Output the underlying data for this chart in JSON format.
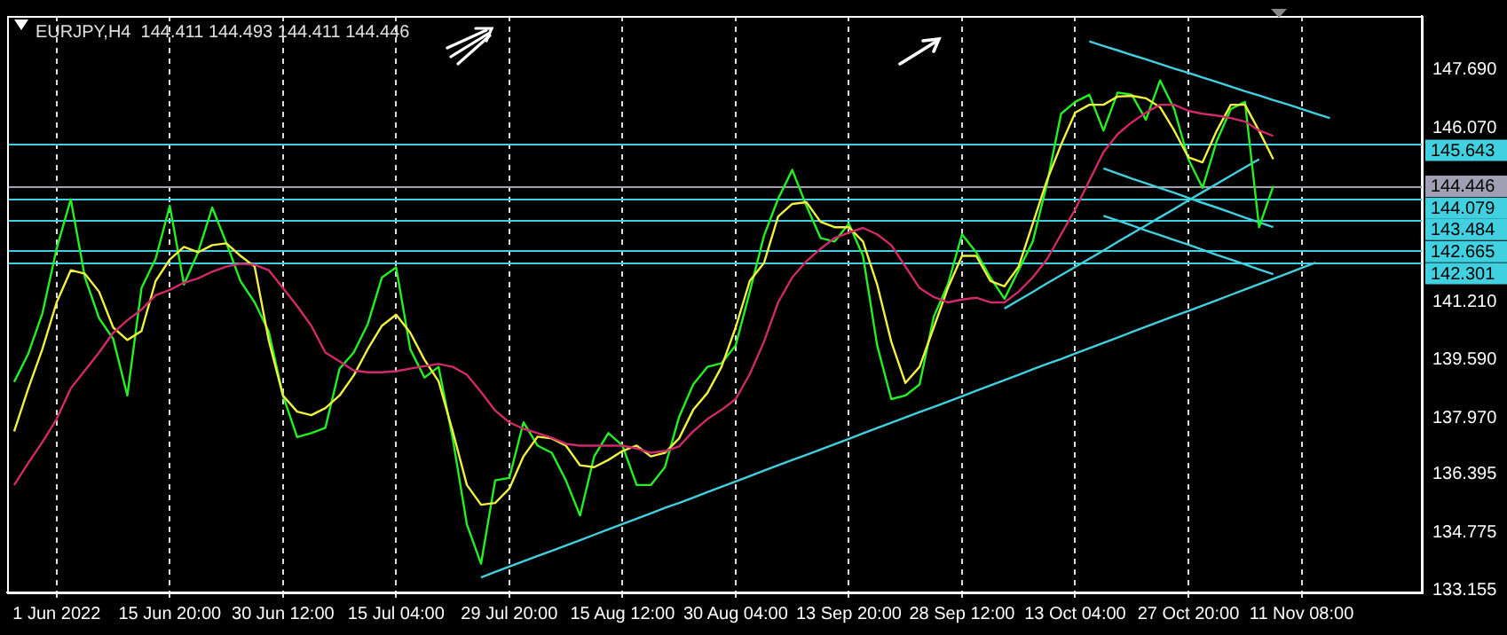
{
  "chart_data": {
    "type": "line",
    "title": "EURJPY,H4  144.411 144.493 144.411 144.446",
    "categories": [
      null,
      null,
      null,
      "1 Jun 2022",
      null,
      null,
      null,
      null,
      null,
      null,
      null,
      "15 Jun 20:00",
      null,
      null,
      null,
      null,
      null,
      null,
      null,
      "30 Jun 12:00",
      null,
      null,
      null,
      null,
      null,
      null,
      null,
      "15 Jul 04:00",
      null,
      null,
      null,
      null,
      null,
      null,
      null,
      "29 Jul 20:00",
      null,
      null,
      null,
      null,
      null,
      null,
      null,
      "15 Aug 12:00",
      null,
      null,
      null,
      null,
      null,
      null,
      null,
      "30 Aug 04:00",
      null,
      null,
      null,
      null,
      null,
      null,
      null,
      "13 Sep 20:00",
      null,
      null,
      null,
      null,
      null,
      null,
      null,
      "28 Sep 12:00",
      null,
      null,
      null,
      null,
      null,
      null,
      null,
      "13 Oct 04:00",
      null,
      null,
      null,
      null,
      null,
      null,
      null,
      "27 Oct 20:00",
      null,
      null,
      null,
      null,
      null,
      null,
      null,
      "11 Nov 08:00",
      null,
      null,
      null,
      null,
      null,
      null,
      null,
      null
    ],
    "ylim": [
      133.1,
      149.2
    ],
    "yticks": [
      133.155,
      134.775,
      136.395,
      {
        "value": 137.97,
        "label": "137.970"
      },
      {
        "value": 139.59,
        "label": "139.590"
      },
      {
        "value": 141.21,
        "label": "141.210"
      },
      {
        "value": 146.07,
        "label": "146.070"
      },
      {
        "value": 147.69,
        "label": "147.690"
      }
    ],
    "grid": "x",
    "marker": "none",
    "line_style": "solid",
    "ref_lines": [
      {
        "axis": "y",
        "value": 145.643,
        "label": "145.643",
        "color": "#40d0e0"
      },
      {
        "axis": "y",
        "value": 144.446,
        "label": "144.446",
        "color": "#a0a0b4"
      },
      {
        "axis": "y",
        "value": 144.079,
        "label": "144.079",
        "color": "#40d0e0"
      },
      {
        "axis": "y",
        "value": 143.484,
        "label": "143.484",
        "color": "#40d0e0"
      },
      {
        "axis": "y",
        "value": 142.665,
        "label": "142.665",
        "color": "#40d0e0"
      },
      {
        "axis": "y",
        "value": 142.301,
        "label": "142.301",
        "color": "#40d0e0"
      }
    ],
    "series": [
      {
        "color": "#d02a6a",
        "values": [
          136.1,
          136.72,
          137.3,
          137.94,
          138.8,
          139.3,
          139.8,
          140.35,
          140.7,
          141.0,
          141.4,
          141.55,
          141.75,
          141.87,
          142.06,
          142.2,
          142.28,
          142.25,
          142.1,
          141.6,
          141.1,
          140.55,
          139.8,
          139.55,
          139.3,
          139.25,
          139.25,
          139.28,
          139.35,
          139.42,
          139.48,
          139.4,
          139.18,
          138.7,
          138.18,
          137.85,
          137.67,
          137.55,
          137.42,
          137.25,
          137.2,
          137.2,
          137.2,
          137.2,
          137.12,
          137.0,
          137.05,
          137.18,
          137.6,
          137.94,
          138.2,
          138.5,
          139.2,
          140.1,
          141.2,
          141.9,
          142.35,
          142.7,
          143.0,
          143.15,
          143.28,
          143.1,
          142.8,
          142.2,
          141.6,
          141.35,
          141.2,
          141.28,
          141.33,
          141.2,
          141.2,
          141.5,
          141.9,
          142.4,
          143.1,
          143.8,
          144.6,
          145.4,
          145.9,
          146.23,
          146.5,
          146.72,
          146.72,
          146.55,
          146.47,
          146.42,
          146.35,
          146.25,
          146.0,
          145.85,
          null,
          null,
          null,
          null,
          null,
          null,
          null,
          null,
          null,
          null
        ]
      },
      {
        "color": "#f0f040",
        "values": [
          137.6,
          138.8,
          139.9,
          141.2,
          142.1,
          142.0,
          141.5,
          140.5,
          140.15,
          140.4,
          141.8,
          142.4,
          142.75,
          142.6,
          142.8,
          142.85,
          142.5,
          142.2,
          140.13,
          138.6,
          138.15,
          138.05,
          138.25,
          138.6,
          139.16,
          139.9,
          140.55,
          140.86,
          140.35,
          139.6,
          139.0,
          137.6,
          136.1,
          135.55,
          135.6,
          136.0,
          136.9,
          137.45,
          137.4,
          137.2,
          136.65,
          136.6,
          136.8,
          137.05,
          137.2,
          136.9,
          137.0,
          137.4,
          138.2,
          138.67,
          139.4,
          140.5,
          141.8,
          142.3,
          143.6,
          143.95,
          144.0,
          143.45,
          143.3,
          143.3,
          142.9,
          141.7,
          140.1,
          138.95,
          139.4,
          140.5,
          141.6,
          142.5,
          142.5,
          141.8,
          141.65,
          142.2,
          143.4,
          144.6,
          145.6,
          146.5,
          146.72,
          146.72,
          146.95,
          146.97,
          146.9,
          146.65,
          146.0,
          145.25,
          145.11,
          145.99,
          146.72,
          146.72,
          145.99,
          145.2,
          null,
          null,
          null,
          null,
          null,
          null,
          null,
          null,
          null,
          null
        ]
      },
      {
        "color": "#22f022",
        "values": [
          138.98,
          139.77,
          140.9,
          142.7,
          144.08,
          141.9,
          140.76,
          140.18,
          138.6,
          141.6,
          142.42,
          143.9,
          141.7,
          142.6,
          143.85,
          142.86,
          141.79,
          141.2,
          140.38,
          138.6,
          137.44,
          137.55,
          137.7,
          139.35,
          139.8,
          140.6,
          141.9,
          142.18,
          139.89,
          139.1,
          139.4,
          137.4,
          135.0,
          133.9,
          136.23,
          136.3,
          137.85,
          137.2,
          137.0,
          136.23,
          135.25,
          136.9,
          137.55,
          137.2,
          136.1,
          136.1,
          136.6,
          138.0,
          138.91,
          139.4,
          139.5,
          140.0,
          141.5,
          143.06,
          144.09,
          144.9,
          143.9,
          143.0,
          142.9,
          143.4,
          142.5,
          140.0,
          138.5,
          138.6,
          138.91,
          140.8,
          141.7,
          143.1,
          142.6,
          141.9,
          141.3,
          142.1,
          142.9,
          144.5,
          146.47,
          146.8,
          147.0,
          146.0,
          147.06,
          147.0,
          146.3,
          147.4,
          146.6,
          145.2,
          144.4,
          145.7,
          146.6,
          146.8,
          143.3,
          144.45,
          null,
          null,
          null,
          null,
          null,
          null,
          null,
          null,
          null,
          null
        ]
      },
      {
        "color": "#40d0e0",
        "values": [
          null,
          null,
          null,
          null,
          null,
          null,
          null,
          null,
          null,
          null,
          null,
          null,
          null,
          null,
          null,
          null,
          null,
          null,
          null,
          null,
          null,
          null,
          null,
          null,
          null,
          null,
          null,
          null,
          null,
          null,
          null,
          null,
          null,
          133.52,
          133.67,
          133.82,
          133.97,
          134.12,
          134.26,
          134.41,
          134.56,
          134.71,
          134.86,
          135.01,
          135.16,
          135.31,
          135.46,
          135.6,
          135.75,
          135.9,
          136.05,
          136.2,
          136.35,
          136.5,
          136.65,
          136.8,
          136.94,
          137.09,
          137.24,
          137.39,
          137.54,
          137.69,
          137.84,
          137.99,
          138.14,
          138.28,
          138.43,
          138.58,
          138.73,
          138.88,
          139.03,
          139.18,
          139.33,
          139.48,
          139.62,
          139.77,
          139.92,
          140.07,
          140.22,
          140.37,
          140.52,
          140.67,
          140.82,
          140.96,
          141.11,
          141.26,
          141.41,
          141.56,
          141.71,
          141.86,
          142.01,
          142.16,
          142.31,
          null,
          null,
          null,
          null,
          null,
          null,
          null
        ]
      },
      {
        "color": "#40d0e0",
        "values": [
          null,
          null,
          null,
          null,
          null,
          null,
          null,
          null,
          null,
          null,
          null,
          null,
          null,
          null,
          null,
          null,
          null,
          null,
          null,
          null,
          null,
          null,
          null,
          null,
          null,
          null,
          null,
          null,
          null,
          null,
          null,
          null,
          null,
          null,
          null,
          null,
          null,
          null,
          null,
          null,
          null,
          null,
          null,
          null,
          null,
          null,
          null,
          null,
          null,
          null,
          null,
          null,
          null,
          null,
          null,
          null,
          null,
          null,
          null,
          null,
          null,
          null,
          null,
          null,
          null,
          null,
          null,
          null,
          null,
          null,
          141.03,
          141.26,
          141.49,
          141.73,
          141.96,
          142.19,
          142.42,
          142.65,
          142.89,
          143.12,
          143.35,
          143.58,
          143.81,
          144.05,
          144.28,
          144.51,
          144.74,
          144.97,
          145.2,
          null,
          null,
          null,
          null,
          null,
          null,
          null,
          null,
          null,
          null,
          null
        ]
      },
      {
        "color": "#40d0e0",
        "values": [
          null,
          null,
          null,
          null,
          null,
          null,
          null,
          null,
          null,
          null,
          null,
          null,
          null,
          null,
          null,
          null,
          null,
          null,
          null,
          null,
          null,
          null,
          null,
          null,
          null,
          null,
          null,
          null,
          null,
          null,
          null,
          null,
          null,
          null,
          null,
          null,
          null,
          null,
          null,
          null,
          null,
          null,
          null,
          null,
          null,
          null,
          null,
          null,
          null,
          null,
          null,
          null,
          null,
          null,
          null,
          null,
          null,
          null,
          null,
          null,
          null,
          null,
          null,
          null,
          null,
          null,
          null,
          null,
          null,
          null,
          null,
          null,
          null,
          null,
          null,
          null,
          148.49,
          148.36,
          148.24,
          148.11,
          147.99,
          147.86,
          147.73,
          147.61,
          147.48,
          147.36,
          147.23,
          147.1,
          146.98,
          146.85,
          146.73,
          146.6,
          146.47,
          146.35,
          null,
          null,
          null,
          null,
          null,
          null
        ]
      },
      {
        "color": "#40d0e0",
        "values": [
          null,
          null,
          null,
          null,
          null,
          null,
          null,
          null,
          null,
          null,
          null,
          null,
          null,
          null,
          null,
          null,
          null,
          null,
          null,
          null,
          null,
          null,
          null,
          null,
          null,
          null,
          null,
          null,
          null,
          null,
          null,
          null,
          null,
          null,
          null,
          null,
          null,
          null,
          null,
          null,
          null,
          null,
          null,
          null,
          null,
          null,
          null,
          null,
          null,
          null,
          null,
          null,
          null,
          null,
          null,
          null,
          null,
          null,
          null,
          null,
          null,
          null,
          null,
          null,
          null,
          null,
          null,
          null,
          null,
          null,
          null,
          null,
          null,
          null,
          null,
          null,
          null,
          144.94,
          144.8,
          144.66,
          144.53,
          144.39,
          144.26,
          144.12,
          143.98,
          143.85,
          143.71,
          143.57,
          143.44,
          143.3,
          null,
          null,
          null,
          null,
          null,
          null,
          null,
          null,
          null,
          null
        ]
      },
      {
        "color": "#40d0e0",
        "values": [
          null,
          null,
          null,
          null,
          null,
          null,
          null,
          null,
          null,
          null,
          null,
          null,
          null,
          null,
          null,
          null,
          null,
          null,
          null,
          null,
          null,
          null,
          null,
          null,
          null,
          null,
          null,
          null,
          null,
          null,
          null,
          null,
          null,
          null,
          null,
          null,
          null,
          null,
          null,
          null,
          null,
          null,
          null,
          null,
          null,
          null,
          null,
          null,
          null,
          null,
          null,
          null,
          null,
          null,
          null,
          null,
          null,
          null,
          null,
          null,
          null,
          null,
          null,
          null,
          null,
          null,
          null,
          null,
          null,
          null,
          null,
          null,
          null,
          null,
          null,
          null,
          null,
          143.62,
          143.49,
          143.35,
          143.21,
          143.08,
          142.94,
          142.81,
          142.67,
          142.53,
          142.4,
          142.26,
          142.12,
          141.99,
          null,
          null,
          null,
          null,
          null,
          null,
          null,
          null,
          null,
          null
        ]
      }
    ]
  }
}
